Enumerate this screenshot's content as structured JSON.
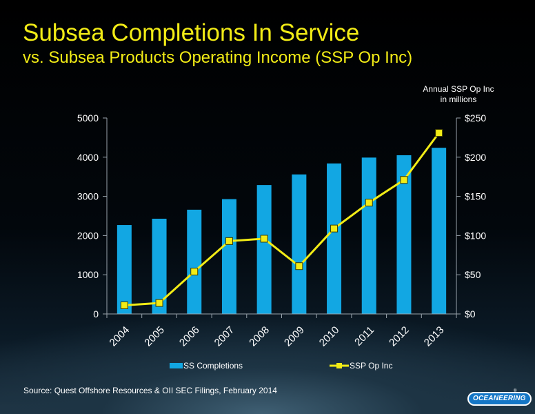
{
  "slide": {
    "title": "Subsea Completions In Service",
    "subtitle": "vs. Subsea Products Operating Income (SSP Op Inc)",
    "right_axis_unit_line1": "Annual SSP Op Inc",
    "right_axis_unit_line2": "in millions",
    "source": "Source:  Quest Offshore Resources & OII SEC Filings, February 2014",
    "logo_text": "OCEANEERING",
    "logo_mark": "®"
  },
  "colors": {
    "background": "#000000",
    "title": "#f2ec16",
    "bars": "#12a7e3",
    "line": "#f2ec16",
    "markers": "#f2ec16",
    "axes": "#9aa4ad",
    "text": "#ffffff",
    "logo": "#1476c6"
  },
  "chart_data": {
    "type": "bar",
    "categories": [
      "2004",
      "2005",
      "2006",
      "2007",
      "2008",
      "2009",
      "2010",
      "2011",
      "2012",
      "2013"
    ],
    "series": [
      {
        "name": "SS Completions",
        "type": "bar",
        "axis": "left",
        "values": [
          2270,
          2430,
          2660,
          2930,
          3290,
          3560,
          3840,
          3990,
          4050,
          4240
        ]
      },
      {
        "name": "SSP Op Inc",
        "type": "line",
        "axis": "right",
        "marker": "square",
        "values": [
          11,
          14,
          54,
          93,
          96,
          61,
          109,
          142,
          171,
          231
        ]
      }
    ],
    "y_left": {
      "min": 0,
      "max": 5000,
      "ticks": [
        0,
        1000,
        2000,
        3000,
        4000,
        5000
      ],
      "tick_labels": [
        "0",
        "1000",
        "2000",
        "3000",
        "4000",
        "5000"
      ]
    },
    "y_right": {
      "min": 0,
      "max": 250,
      "ticks": [
        0,
        50,
        100,
        150,
        200,
        250
      ],
      "tick_labels": [
        "$0",
        "$50",
        "$100",
        "$150",
        "$200",
        "$250"
      ]
    },
    "grid": false,
    "legend": "bottom",
    "x_labels_rotated": true
  }
}
